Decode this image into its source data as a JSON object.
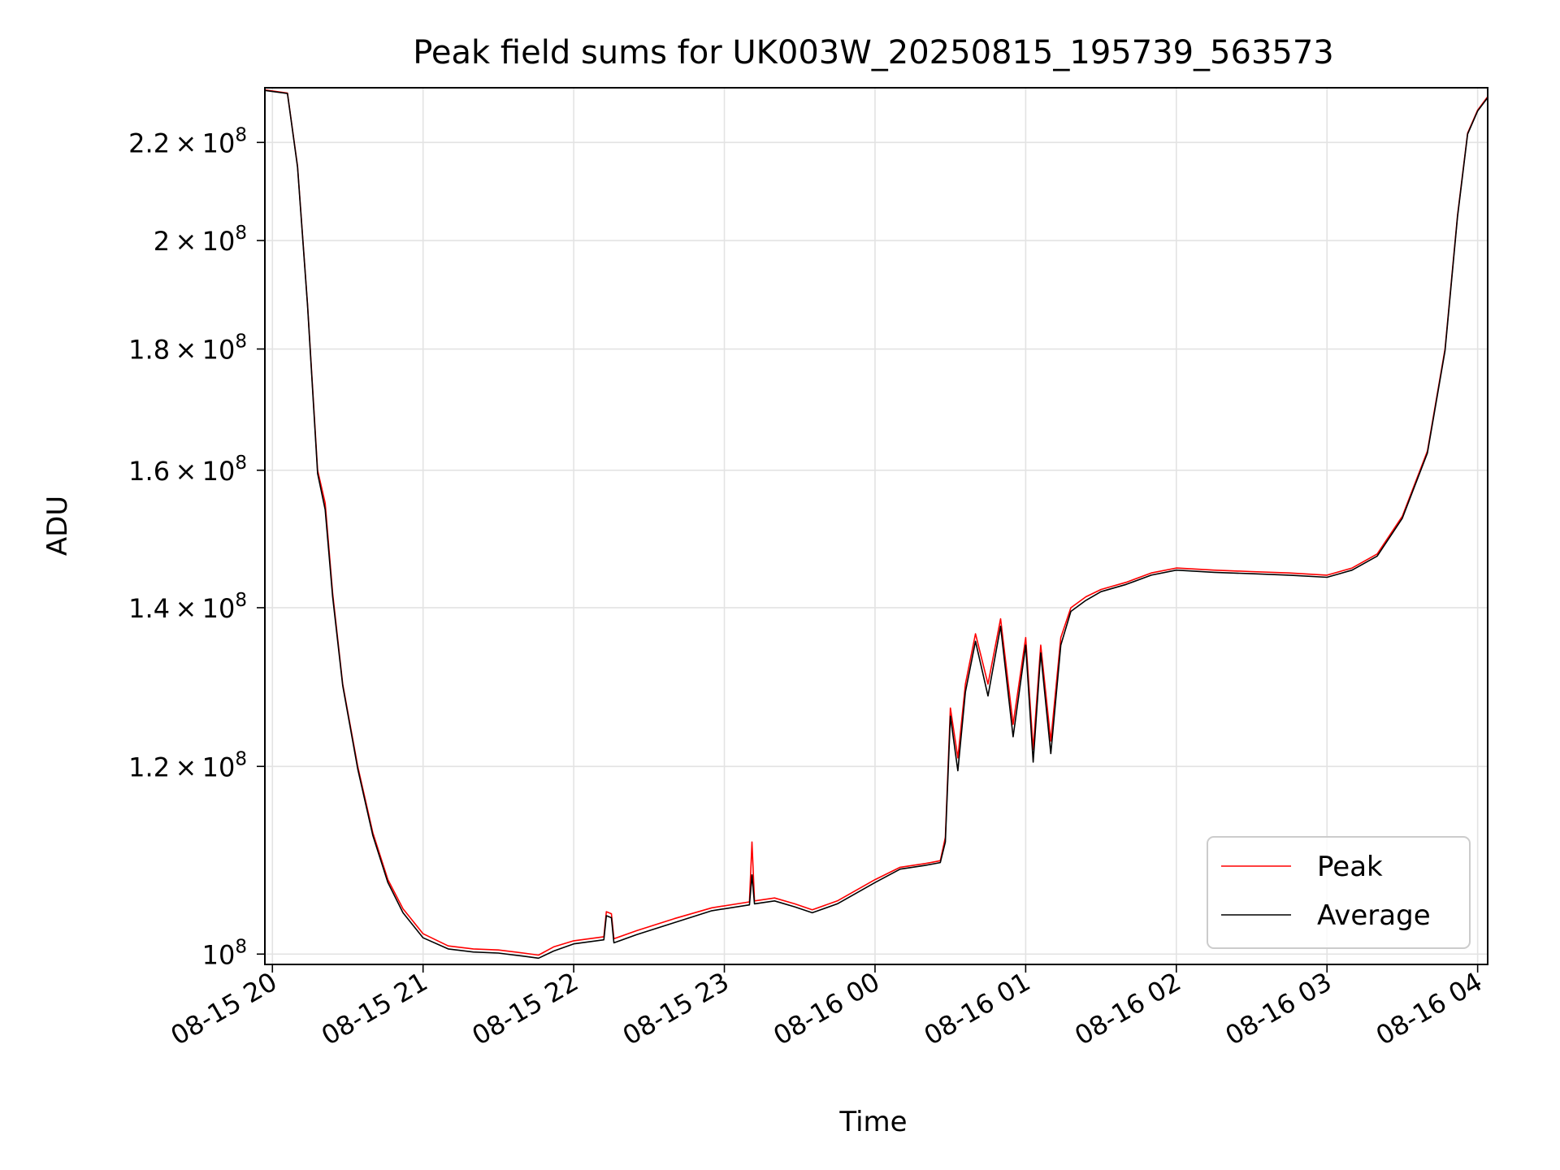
{
  "chart_data": {
    "type": "line",
    "title": "Peak field sums for UK003W_20250815_195739_563573",
    "xlabel": "Time",
    "ylabel": "ADU",
    "x_unit": "time",
    "xlim": [
      "2025-08-15T19:57",
      "2025-08-16T04:04"
    ],
    "ylim": [
      99000000,
      232000000
    ],
    "yscale": "log",
    "grid": true,
    "legend_position": "lower-right",
    "x_ticks": [
      {
        "t": "2025-08-15T20:00",
        "label": "08-15 20"
      },
      {
        "t": "2025-08-15T21:00",
        "label": "08-15 21"
      },
      {
        "t": "2025-08-15T22:00",
        "label": "08-15 22"
      },
      {
        "t": "2025-08-15T23:00",
        "label": "08-15 23"
      },
      {
        "t": "2025-08-16T00:00",
        "label": "08-16 00"
      },
      {
        "t": "2025-08-16T01:00",
        "label": "08-16 01"
      },
      {
        "t": "2025-08-16T02:00",
        "label": "08-16 02"
      },
      {
        "t": "2025-08-16T03:00",
        "label": "08-16 03"
      },
      {
        "t": "2025-08-16T04:00",
        "label": "08-16 04"
      }
    ],
    "y_ticks": [
      {
        "v": 100000000,
        "mant": "",
        "exp": "8"
      },
      {
        "v": 120000000,
        "mant": "1.2",
        "exp": "8"
      },
      {
        "v": 140000000,
        "mant": "1.4",
        "exp": "8"
      },
      {
        "v": 160000000,
        "mant": "1.6",
        "exp": "8"
      },
      {
        "v": 180000000,
        "mant": "1.8",
        "exp": "8"
      },
      {
        "v": 200000000,
        "mant": "2",
        "exp": "8"
      },
      {
        "v": 220000000,
        "mant": "2.2",
        "exp": "8"
      }
    ],
    "series": [
      {
        "name": "Peak",
        "color": "#ff0000",
        "points": [
          [
            "2025-08-15T19:57",
            231500000
          ],
          [
            "2025-08-15T20:06",
            230800000
          ],
          [
            "2025-08-15T20:10",
            215000000
          ],
          [
            "2025-08-15T20:14",
            188000000
          ],
          [
            "2025-08-15T20:18",
            160000000
          ],
          [
            "2025-08-15T20:21",
            155000000
          ],
          [
            "2025-08-15T20:24",
            142000000
          ],
          [
            "2025-08-15T20:28",
            130000000
          ],
          [
            "2025-08-15T20:34",
            120000000
          ],
          [
            "2025-08-15T20:40",
            112500000
          ],
          [
            "2025-08-15T20:46",
            107500000
          ],
          [
            "2025-08-15T20:52",
            104500000
          ],
          [
            "2025-08-15T21:00",
            102000000
          ],
          [
            "2025-08-15T21:10",
            100800000
          ],
          [
            "2025-08-15T21:20",
            100500000
          ],
          [
            "2025-08-15T21:30",
            100400000
          ],
          [
            "2025-08-15T21:40",
            100100000
          ],
          [
            "2025-08-15T21:46",
            99900000
          ],
          [
            "2025-08-15T21:52",
            100700000
          ],
          [
            "2025-08-15T22:00",
            101300000
          ],
          [
            "2025-08-15T22:12",
            101700000
          ],
          [
            "2025-08-15T22:13",
            104200000
          ],
          [
            "2025-08-15T22:15",
            104000000
          ],
          [
            "2025-08-15T22:16",
            101500000
          ],
          [
            "2025-08-15T22:25",
            102300000
          ],
          [
            "2025-08-15T22:40",
            103500000
          ],
          [
            "2025-08-15T22:55",
            104600000
          ],
          [
            "2025-08-15T23:10",
            105200000
          ],
          [
            "2025-08-15T23:11",
            111500000
          ],
          [
            "2025-08-15T23:12",
            105300000
          ],
          [
            "2025-08-15T23:20",
            105600000
          ],
          [
            "2025-08-15T23:28",
            105000000
          ],
          [
            "2025-08-15T23:35",
            104400000
          ],
          [
            "2025-08-15T23:45",
            105300000
          ],
          [
            "2025-08-16T00:00",
            107500000
          ],
          [
            "2025-08-16T00:10",
            108800000
          ],
          [
            "2025-08-16T00:20",
            109200000
          ],
          [
            "2025-08-16T00:26",
            109500000
          ],
          [
            "2025-08-16T00:28",
            112000000
          ],
          [
            "2025-08-16T00:30",
            127000000
          ],
          [
            "2025-08-16T00:33",
            121000000
          ],
          [
            "2025-08-16T00:36",
            130000000
          ],
          [
            "2025-08-16T00:40",
            136500000
          ],
          [
            "2025-08-16T00:45",
            130000000
          ],
          [
            "2025-08-16T00:50",
            138500000
          ],
          [
            "2025-08-16T00:55",
            125000000
          ],
          [
            "2025-08-16T01:00",
            136000000
          ],
          [
            "2025-08-16T01:03",
            122000000
          ],
          [
            "2025-08-16T01:06",
            135000000
          ],
          [
            "2025-08-16T01:10",
            123000000
          ],
          [
            "2025-08-16T01:14",
            136000000
          ],
          [
            "2025-08-16T01:18",
            140000000
          ],
          [
            "2025-08-16T01:24",
            141500000
          ],
          [
            "2025-08-16T01:30",
            142500000
          ],
          [
            "2025-08-16T01:40",
            143500000
          ],
          [
            "2025-08-16T01:50",
            144800000
          ],
          [
            "2025-08-16T02:00",
            145500000
          ],
          [
            "2025-08-16T02:15",
            145200000
          ],
          [
            "2025-08-16T02:30",
            145000000
          ],
          [
            "2025-08-16T02:45",
            144800000
          ],
          [
            "2025-08-16T03:00",
            144500000
          ],
          [
            "2025-08-16T03:10",
            145500000
          ],
          [
            "2025-08-16T03:20",
            147500000
          ],
          [
            "2025-08-16T03:30",
            153000000
          ],
          [
            "2025-08-16T03:40",
            163000000
          ],
          [
            "2025-08-16T03:47",
            180000000
          ],
          [
            "2025-08-16T03:52",
            205000000
          ],
          [
            "2025-08-16T03:56",
            222000000
          ],
          [
            "2025-08-16T04:00",
            227000000
          ],
          [
            "2025-08-16T04:04",
            230000000
          ]
        ]
      },
      {
        "name": "Average",
        "color": "#000000",
        "points": [
          [
            "2025-08-15T19:57",
            231400000
          ],
          [
            "2025-08-15T20:06",
            230700000
          ],
          [
            "2025-08-15T20:10",
            214800000
          ],
          [
            "2025-08-15T20:14",
            187800000
          ],
          [
            "2025-08-15T20:18",
            159500000
          ],
          [
            "2025-08-15T20:21",
            154000000
          ],
          [
            "2025-08-15T20:24",
            141500000
          ],
          [
            "2025-08-15T20:28",
            129800000
          ],
          [
            "2025-08-15T20:34",
            119700000
          ],
          [
            "2025-08-15T20:40",
            112200000
          ],
          [
            "2025-08-15T20:46",
            107200000
          ],
          [
            "2025-08-15T20:52",
            104100000
          ],
          [
            "2025-08-15T21:00",
            101600000
          ],
          [
            "2025-08-15T21:10",
            100500000
          ],
          [
            "2025-08-15T21:20",
            100200000
          ],
          [
            "2025-08-15T21:30",
            100100000
          ],
          [
            "2025-08-15T21:40",
            99800000
          ],
          [
            "2025-08-15T21:46",
            99600000
          ],
          [
            "2025-08-15T21:52",
            100300000
          ],
          [
            "2025-08-15T22:00",
            101000000
          ],
          [
            "2025-08-15T22:12",
            101400000
          ],
          [
            "2025-08-15T22:13",
            103800000
          ],
          [
            "2025-08-15T22:15",
            103600000
          ],
          [
            "2025-08-15T22:16",
            101100000
          ],
          [
            "2025-08-15T22:25",
            101900000
          ],
          [
            "2025-08-15T22:40",
            103100000
          ],
          [
            "2025-08-15T22:55",
            104300000
          ],
          [
            "2025-08-15T23:10",
            104900000
          ],
          [
            "2025-08-15T23:11",
            108000000
          ],
          [
            "2025-08-15T23:12",
            105000000
          ],
          [
            "2025-08-15T23:20",
            105300000
          ],
          [
            "2025-08-15T23:28",
            104700000
          ],
          [
            "2025-08-15T23:35",
            104100000
          ],
          [
            "2025-08-15T23:45",
            105000000
          ],
          [
            "2025-08-16T00:00",
            107200000
          ],
          [
            "2025-08-16T00:10",
            108600000
          ],
          [
            "2025-08-16T00:20",
            109000000
          ],
          [
            "2025-08-16T00:26",
            109300000
          ],
          [
            "2025-08-16T00:28",
            111500000
          ],
          [
            "2025-08-16T00:30",
            126000000
          ],
          [
            "2025-08-16T00:33",
            119500000
          ],
          [
            "2025-08-16T00:36",
            129000000
          ],
          [
            "2025-08-16T00:40",
            135500000
          ],
          [
            "2025-08-16T00:45",
            128500000
          ],
          [
            "2025-08-16T00:50",
            137500000
          ],
          [
            "2025-08-16T00:55",
            123500000
          ],
          [
            "2025-08-16T01:00",
            135000000
          ],
          [
            "2025-08-16T01:03",
            120500000
          ],
          [
            "2025-08-16T01:06",
            134000000
          ],
          [
            "2025-08-16T01:10",
            121500000
          ],
          [
            "2025-08-16T01:14",
            135000000
          ],
          [
            "2025-08-16T01:18",
            139500000
          ],
          [
            "2025-08-16T01:24",
            141000000
          ],
          [
            "2025-08-16T01:30",
            142200000
          ],
          [
            "2025-08-16T01:40",
            143200000
          ],
          [
            "2025-08-16T01:50",
            144500000
          ],
          [
            "2025-08-16T02:00",
            145200000
          ],
          [
            "2025-08-16T02:15",
            144900000
          ],
          [
            "2025-08-16T02:30",
            144700000
          ],
          [
            "2025-08-16T02:45",
            144500000
          ],
          [
            "2025-08-16T03:00",
            144200000
          ],
          [
            "2025-08-16T03:10",
            145200000
          ],
          [
            "2025-08-16T03:20",
            147200000
          ],
          [
            "2025-08-16T03:30",
            152700000
          ],
          [
            "2025-08-16T03:40",
            162700000
          ],
          [
            "2025-08-16T03:47",
            179700000
          ],
          [
            "2025-08-16T03:52",
            204700000
          ],
          [
            "2025-08-16T03:56",
            221800000
          ],
          [
            "2025-08-16T04:00",
            226800000
          ],
          [
            "2025-08-16T04:04",
            229800000
          ]
        ]
      }
    ]
  }
}
